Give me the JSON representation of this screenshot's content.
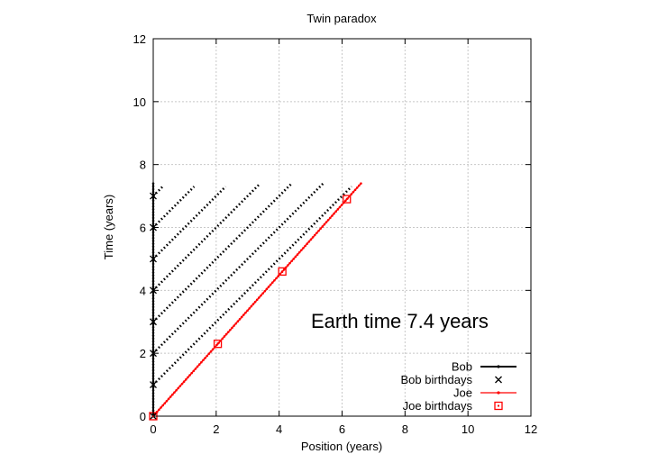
{
  "chart_data": {
    "type": "line",
    "title": "Twin paradox",
    "xlabel": "Position (years)",
    "ylabel": "Time (years)",
    "xlim": [
      0,
      12
    ],
    "ylim": [
      0,
      12
    ],
    "xticks": [
      "0",
      "2",
      "4",
      "6",
      "8",
      "10",
      "12"
    ],
    "yticks": [
      "0",
      "2",
      "4",
      "6",
      "8",
      "10",
      "12"
    ],
    "grid": true,
    "legend_position": "bottom-right",
    "annotation": "Earth time  7.4 years",
    "series": [
      {
        "name": "Bob",
        "style": "line-points",
        "color": "#000000",
        "points": [
          [
            0,
            0
          ],
          [
            0,
            7.4
          ]
        ]
      },
      {
        "name": "Bob birthdays",
        "style": "cross",
        "color": "#000000",
        "points": [
          [
            0,
            0
          ],
          [
            0,
            1
          ],
          [
            0,
            2
          ],
          [
            0,
            3
          ],
          [
            0,
            4
          ],
          [
            0,
            5
          ],
          [
            0,
            6
          ],
          [
            0,
            7
          ]
        ]
      },
      {
        "name": "Joe",
        "style": "line-points",
        "color": "#ff0000",
        "points": [
          [
            0,
            0
          ],
          [
            6.6,
            7.4
          ]
        ]
      },
      {
        "name": "Joe birthdays",
        "style": "square",
        "color": "#ff0000",
        "points": [
          [
            0,
            0
          ],
          [
            2.05,
            2.3
          ],
          [
            4.1,
            4.6
          ],
          [
            6.15,
            6.9
          ]
        ]
      }
    ],
    "signal_lines": {
      "style": "dotted",
      "color": "#000000",
      "lines": [
        [
          [
            0,
            1
          ],
          [
            6.3,
            7.3
          ]
        ],
        [
          [
            0,
            2
          ],
          [
            5.4,
            7.4
          ]
        ],
        [
          [
            0,
            3
          ],
          [
            4.4,
            7.4
          ]
        ],
        [
          [
            0,
            4
          ],
          [
            3.4,
            7.4
          ]
        ],
        [
          [
            0,
            5
          ],
          [
            2.3,
            7.3
          ]
        ],
        [
          [
            0,
            6
          ],
          [
            1.3,
            7.3
          ]
        ],
        [
          [
            0,
            7
          ],
          [
            0.3,
            7.3
          ]
        ]
      ]
    }
  }
}
